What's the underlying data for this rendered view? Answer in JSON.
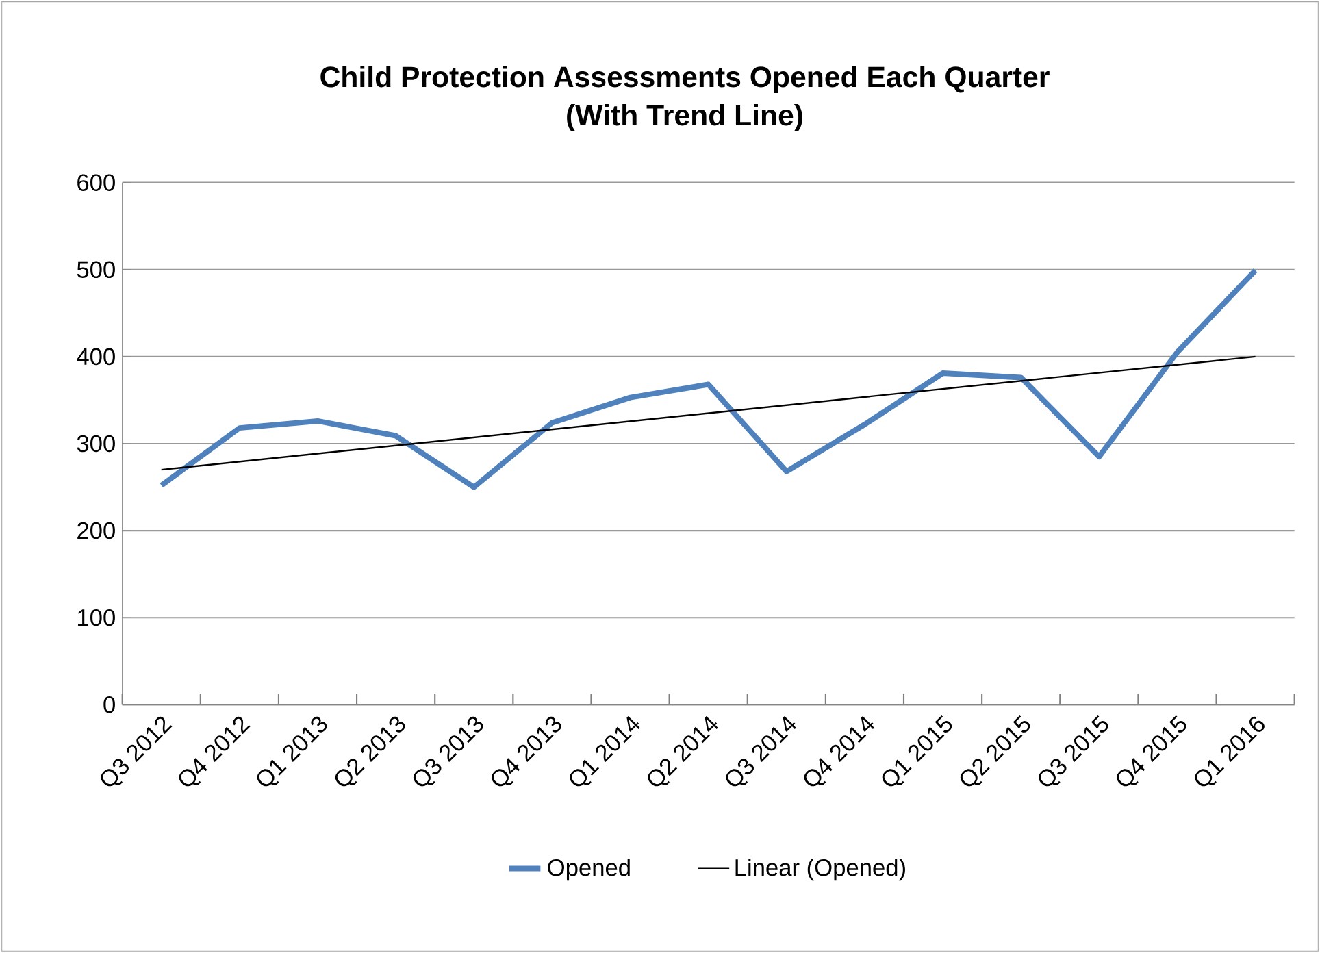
{
  "chart_data": {
    "type": "line",
    "title": "Child Protection Assessments Opened Each Quarter\n(With Trend Line)",
    "categories": [
      "Q3 2012",
      "Q4 2012",
      "Q1 2013",
      "Q2 2013",
      "Q3 2013",
      "Q4 2013",
      "Q1 2014",
      "Q2 2014",
      "Q3 2014",
      "Q4 2014",
      "Q1 2015",
      "Q2 2015",
      "Q3 2015",
      "Q4 2015",
      "Q1 2016"
    ],
    "series": [
      {
        "name": "Opened",
        "color": "#4f81bd",
        "values": [
          252,
          318,
          326,
          309,
          250,
          324,
          353,
          368,
          268,
          322,
          381,
          376,
          285,
          405,
          499
        ]
      },
      {
        "name": "Linear (Opened)",
        "color": "#000000",
        "values": [
          270,
          null,
          null,
          null,
          null,
          null,
          null,
          null,
          null,
          null,
          null,
          null,
          null,
          null,
          400
        ]
      }
    ],
    "ylim": [
      0,
      600
    ],
    "yticks": [
      0,
      100,
      200,
      300,
      400,
      500,
      600
    ],
    "grid": "y",
    "legend": "bottom",
    "marker": "none",
    "line_style": "solid"
  }
}
